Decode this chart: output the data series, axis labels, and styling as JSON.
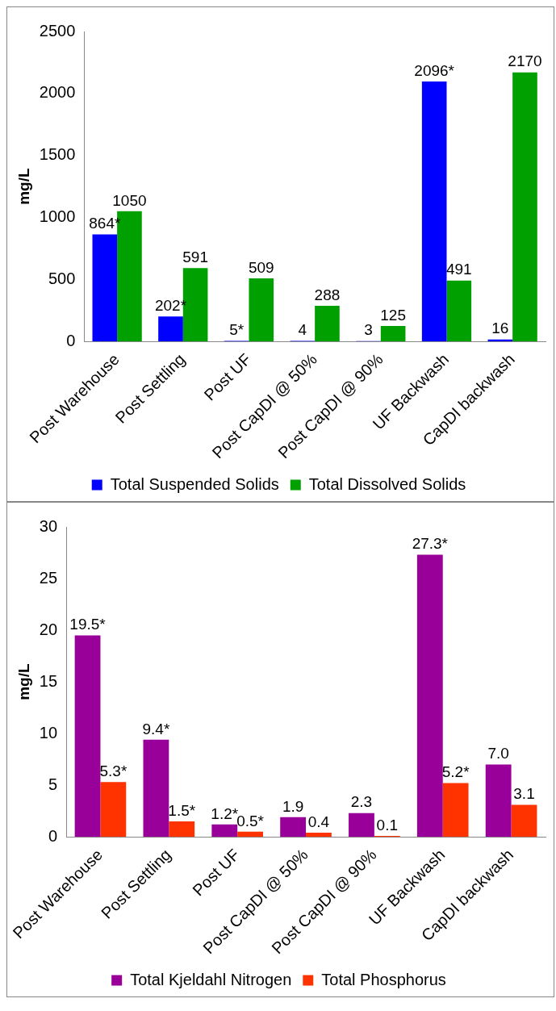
{
  "chart_data": [
    {
      "type": "bar",
      "ylabel": "mg/L",
      "categories": [
        "Post Warehouse",
        "Post Settling",
        "Post UF",
        "Post CapDI @ 50%",
        "Post CapDI @ 90%",
        "UF Backwash",
        "CapDI backwash"
      ],
      "series": [
        {
          "name": "Total Suspended Solids",
          "color": "#0000ff",
          "values": [
            864,
            202,
            5,
            4,
            3,
            2096,
            16
          ],
          "value_labels": [
            "864*",
            "202*",
            "5*",
            "4",
            "3",
            "2096*",
            "16"
          ]
        },
        {
          "name": "Total Dissolved Solids",
          "color": "#00a000",
          "values": [
            1050,
            591,
            509,
            288,
            125,
            491,
            2170
          ],
          "value_labels": [
            "1050",
            "591",
            "509",
            "288",
            "125",
            "491",
            "2170"
          ]
        }
      ],
      "ylim": [
        0,
        2500
      ],
      "yticks": [
        0,
        500,
        1000,
        1500,
        2000,
        2500
      ],
      "grid": false,
      "legend": "bottom"
    },
    {
      "type": "bar",
      "ylabel": "mg/L",
      "categories": [
        "Post Warehouse",
        "Post Settling",
        "Post UF",
        "Post CapDI @ 50%",
        "Post CapDI @ 90%",
        "UF Backwash",
        "CapDI backwash"
      ],
      "series": [
        {
          "name": "Total Kjeldahl Nitrogen",
          "color": "#990099",
          "values": [
            19.5,
            9.4,
            1.2,
            1.9,
            2.3,
            27.3,
            7.0
          ],
          "value_labels": [
            "19.5*",
            "9.4*",
            "1.2*",
            "1.9",
            "2.3",
            "27.3*",
            "7.0"
          ]
        },
        {
          "name": "Total Phosphorus",
          "color": "#ff3300",
          "values": [
            5.3,
            1.5,
            0.5,
            0.4,
            0.1,
            5.2,
            3.1
          ],
          "value_labels": [
            "5.3*",
            "1.5*",
            "0.5*",
            "0.4",
            "0.1",
            "5.2*",
            "3.1"
          ]
        }
      ],
      "ylim": [
        0,
        30
      ],
      "yticks": [
        0,
        5,
        10,
        15,
        20,
        25,
        30
      ],
      "grid": false,
      "legend": "bottom"
    }
  ]
}
